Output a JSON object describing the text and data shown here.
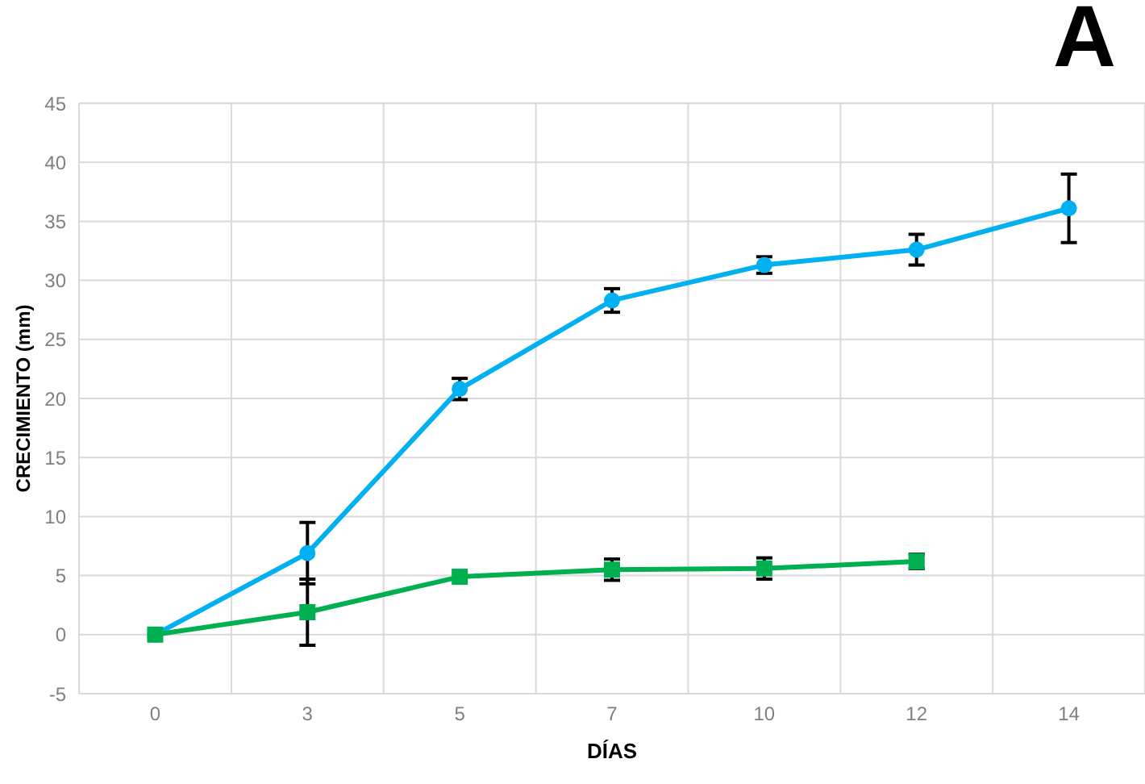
{
  "chart_data": {
    "type": "line",
    "title": "A",
    "xlabel": "DÍAS",
    "ylabel": "CRECIMIENTO (mm)",
    "categories": [
      "0",
      "3",
      "5",
      "7",
      "10",
      "12",
      "14"
    ],
    "series": [
      {
        "color": "#00b0f0",
        "marker": "circle",
        "values": [
          0,
          6.9,
          20.8,
          28.3,
          31.3,
          32.6,
          36.1
        ],
        "errors": [
          null,
          2.6,
          0.9,
          1.0,
          0.7,
          1.3,
          2.9
        ]
      },
      {
        "color": "#00b050",
        "marker": "square",
        "values": [
          0,
          1.9,
          4.9,
          5.5,
          5.6,
          6.2,
          null
        ],
        "errors": [
          null,
          2.8,
          null,
          0.9,
          0.9,
          0.6,
          null
        ]
      }
    ],
    "ylim": [
      -5,
      45
    ],
    "yticks": [
      -5,
      0,
      5,
      10,
      15,
      20,
      25,
      30,
      35,
      40,
      45
    ],
    "grid": true,
    "legend": false
  }
}
